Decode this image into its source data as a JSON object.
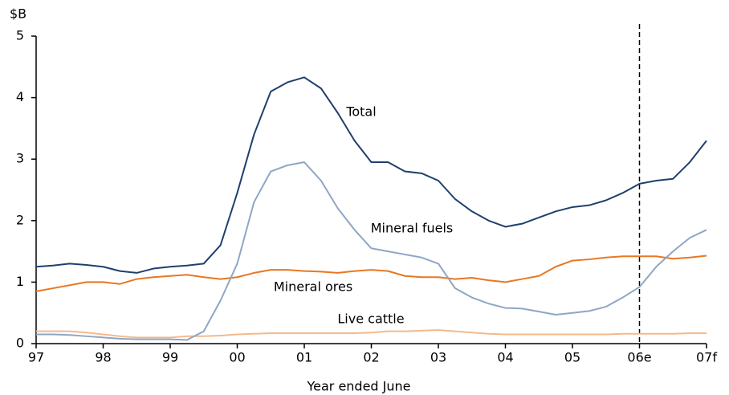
{
  "chart_data": {
    "type": "line",
    "y_unit_label": "$B",
    "x_label": "Year ended June",
    "categories": [
      "97",
      null,
      null,
      null,
      "98",
      null,
      null,
      null,
      "99",
      null,
      null,
      null,
      "00",
      null,
      null,
      null,
      "01",
      null,
      null,
      null,
      "02",
      null,
      null,
      null,
      "03",
      null,
      null,
      null,
      "04",
      null,
      null,
      null,
      "05",
      null,
      null,
      null,
      "06e",
      null,
      null,
      null,
      "07f"
    ],
    "series": [
      {
        "name": "Total",
        "color": "#1f3f6e",
        "values": [
          1.25,
          1.27,
          1.3,
          1.28,
          1.25,
          1.18,
          1.15,
          1.22,
          1.25,
          1.27,
          1.3,
          1.6,
          2.45,
          3.4,
          4.1,
          4.25,
          4.33,
          4.15,
          3.75,
          3.3,
          2.95,
          2.95,
          2.8,
          2.77,
          2.65,
          2.35,
          2.15,
          2.0,
          1.9,
          1.95,
          2.05,
          2.15,
          2.22,
          2.25,
          2.33,
          2.45,
          2.6,
          2.65,
          2.68,
          2.95,
          3.3
        ]
      },
      {
        "name": "Mineral fuels",
        "color": "#8fa6c4",
        "values": [
          0.15,
          0.15,
          0.14,
          0.12,
          0.1,
          0.08,
          0.07,
          0.07,
          0.07,
          0.06,
          0.2,
          0.7,
          1.3,
          2.3,
          2.8,
          2.9,
          2.95,
          2.65,
          2.2,
          1.85,
          1.55,
          1.5,
          1.45,
          1.4,
          1.3,
          0.9,
          0.75,
          0.65,
          0.58,
          0.57,
          0.52,
          0.47,
          0.5,
          0.53,
          0.6,
          0.75,
          0.92,
          1.25,
          1.5,
          1.72,
          1.85
        ]
      },
      {
        "name": "Mineral ores",
        "color": "#e87722",
        "values": [
          0.85,
          0.9,
          0.95,
          1.0,
          1.0,
          0.97,
          1.05,
          1.08,
          1.1,
          1.12,
          1.08,
          1.05,
          1.08,
          1.15,
          1.2,
          1.2,
          1.18,
          1.17,
          1.15,
          1.18,
          1.2,
          1.18,
          1.1,
          1.08,
          1.08,
          1.05,
          1.07,
          1.03,
          1.0,
          1.05,
          1.1,
          1.25,
          1.35,
          1.37,
          1.4,
          1.42,
          1.42,
          1.42,
          1.38,
          1.4,
          1.43
        ]
      },
      {
        "name": "Live cattle",
        "color": "#f5b98a",
        "values": [
          0.2,
          0.2,
          0.2,
          0.18,
          0.15,
          0.12,
          0.1,
          0.1,
          0.1,
          0.12,
          0.12,
          0.13,
          0.15,
          0.16,
          0.17,
          0.17,
          0.17,
          0.17,
          0.17,
          0.17,
          0.18,
          0.2,
          0.2,
          0.21,
          0.22,
          0.2,
          0.18,
          0.16,
          0.15,
          0.15,
          0.15,
          0.15,
          0.15,
          0.15,
          0.15,
          0.16,
          0.16,
          0.16,
          0.16,
          0.17,
          0.17
        ]
      }
    ],
    "ylim": [
      0,
      5
    ],
    "yticks": [
      0,
      1,
      2,
      3,
      4,
      5
    ],
    "grid": false,
    "forecast_from": 36
  }
}
